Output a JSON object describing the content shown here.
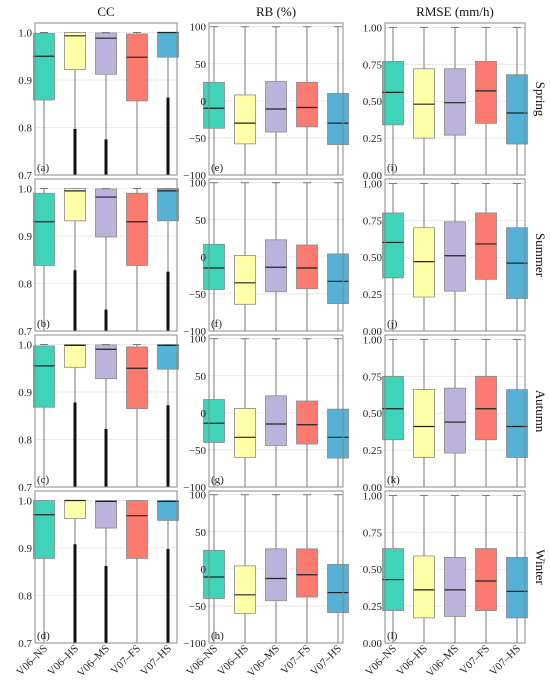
{
  "chart_data": {
    "type": "boxplot",
    "layout": "4x3",
    "column_titles": [
      "CC",
      "RB (%)",
      "RMSE (mm/h)"
    ],
    "row_labels": [
      "Spring",
      "Summer",
      "Autumn",
      "Winter"
    ],
    "categories": [
      "V06–NS",
      "V06–HS",
      "V06–MS",
      "V07–FS",
      "V07–HS"
    ],
    "colors": [
      "#40d3b9",
      "#ffffa8",
      "#bcb3dc",
      "#fb7b70",
      "#55b1d6"
    ],
    "panel_labels": [
      [
        "(a)",
        "(e)",
        "(i)"
      ],
      [
        "(b)",
        "(f)",
        "(j)"
      ],
      [
        "(c)",
        "(g)",
        "(k)"
      ],
      [
        "(d)",
        "(h)",
        "(l)"
      ]
    ],
    "axes": [
      {
        "ylim": [
          0.7,
          1.02
        ],
        "ticks": [
          0.7,
          0.8,
          0.9,
          1.0
        ],
        "tick_labels": [
          "0.7",
          "0.8",
          "0.9",
          "1.0"
        ]
      },
      {
        "ylim": [
          -100,
          105
        ],
        "ticks": [
          -100,
          -50,
          0,
          50,
          100
        ],
        "tick_labels": [
          "−100",
          "−50",
          "0",
          "50",
          "100"
        ]
      },
      {
        "ylim": [
          0,
          1.03
        ],
        "ticks": [
          0,
          0.25,
          0.5,
          0.75,
          1.0
        ],
        "tick_labels": [
          "0.00",
          "0.25",
          "0.50",
          "0.75",
          "1.00"
        ]
      }
    ],
    "panels": [
      [
        [
          {
            "whislo": 0.7,
            "q1": 0.858,
            "med": 0.95,
            "q3": 0.998,
            "whishi": 1.0
          },
          {
            "whislo": 0.7,
            "q1": 0.922,
            "med": 0.993,
            "q3": 1.0,
            "whishi": 1.0,
            "dense_tail": [
              0.7,
              0.797
            ]
          },
          {
            "whislo": 0.7,
            "q1": 0.912,
            "med": 0.988,
            "q3": 0.999,
            "whishi": 1.0,
            "dense_tail": [
              0.7,
              0.775
            ]
          },
          {
            "whislo": 0.7,
            "q1": 0.856,
            "med": 0.948,
            "q3": 0.997,
            "whishi": 1.0
          },
          {
            "whislo": 0.7,
            "q1": 0.948,
            "med": 1.0,
            "q3": 1.0,
            "whishi": 1.0,
            "dense_tail": [
              0.7,
              0.863
            ]
          }
        ],
        [
          {
            "whislo": -100,
            "q1": -37,
            "med": -10,
            "q3": 25,
            "whishi": 100
          },
          {
            "whislo": -100,
            "q1": -58,
            "med": -30,
            "q3": 8,
            "whishi": 100
          },
          {
            "whislo": -100,
            "q1": -42,
            "med": -11,
            "q3": 26,
            "whishi": 100
          },
          {
            "whislo": -100,
            "q1": -35,
            "med": -9,
            "q3": 25,
            "whishi": 100
          },
          {
            "whislo": -100,
            "q1": -59,
            "med": -30,
            "q3": 10,
            "whishi": 100
          }
        ],
        [
          {
            "whislo": 0,
            "q1": 0.34,
            "med": 0.56,
            "q3": 0.77,
            "whishi": 1.0
          },
          {
            "whislo": 0,
            "q1": 0.25,
            "med": 0.48,
            "q3": 0.72,
            "whishi": 1.0
          },
          {
            "whislo": 0,
            "q1": 0.27,
            "med": 0.49,
            "q3": 0.72,
            "whishi": 1.0
          },
          {
            "whislo": 0,
            "q1": 0.35,
            "med": 0.57,
            "q3": 0.77,
            "whishi": 1.0
          },
          {
            "whislo": 0,
            "q1": 0.21,
            "med": 0.42,
            "q3": 0.68,
            "whishi": 1.0
          }
        ]
      ],
      [
        [
          {
            "whislo": 0.7,
            "q1": 0.838,
            "med": 0.93,
            "q3": 0.99,
            "whishi": 1.0
          },
          {
            "whislo": 0.7,
            "q1": 0.932,
            "med": 0.995,
            "q3": 1.0,
            "whishi": 1.0,
            "dense_tail": [
              0.7,
              0.828
            ]
          },
          {
            "whislo": 0.7,
            "q1": 0.898,
            "med": 0.982,
            "q3": 0.999,
            "whishi": 1.0,
            "dense_tail": [
              0.7,
              0.745
            ]
          },
          {
            "whislo": 0.7,
            "q1": 0.838,
            "med": 0.93,
            "q3": 0.99,
            "whishi": 1.0
          },
          {
            "whislo": 0.7,
            "q1": 0.932,
            "med": 0.995,
            "q3": 1.0,
            "whishi": 1.0,
            "dense_tail": [
              0.7,
              0.825
            ]
          }
        ],
        [
          {
            "whislo": -100,
            "q1": -44,
            "med": -15,
            "q3": 17,
            "whishi": 100
          },
          {
            "whislo": -100,
            "q1": -64,
            "med": -35,
            "q3": 2,
            "whishi": 100
          },
          {
            "whislo": -100,
            "q1": -47,
            "med": -14,
            "q3": 23,
            "whishi": 100
          },
          {
            "whislo": -100,
            "q1": -43,
            "med": -15,
            "q3": 16,
            "whishi": 100
          },
          {
            "whislo": -100,
            "q1": -63,
            "med": -33,
            "q3": 4,
            "whishi": 100
          }
        ],
        [
          {
            "whislo": 0,
            "q1": 0.36,
            "med": 0.6,
            "q3": 0.8,
            "whishi": 1.0
          },
          {
            "whislo": 0,
            "q1": 0.23,
            "med": 0.47,
            "q3": 0.7,
            "whishi": 1.0
          },
          {
            "whislo": 0,
            "q1": 0.27,
            "med": 0.51,
            "q3": 0.74,
            "whishi": 1.0
          },
          {
            "whislo": 0,
            "q1": 0.35,
            "med": 0.59,
            "q3": 0.8,
            "whishi": 1.0
          },
          {
            "whislo": 0,
            "q1": 0.22,
            "med": 0.46,
            "q3": 0.7,
            "whishi": 1.0
          }
        ]
      ],
      [
        [
          {
            "whislo": 0.7,
            "q1": 0.868,
            "med": 0.955,
            "q3": 0.997,
            "whishi": 1.0
          },
          {
            "whislo": 0.7,
            "q1": 0.952,
            "med": 0.998,
            "q3": 1.0,
            "whishi": 1.0,
            "dense_tail": [
              0.7,
              0.878
            ]
          },
          {
            "whislo": 0.7,
            "q1": 0.928,
            "med": 0.99,
            "q3": 0.999,
            "whishi": 1.0,
            "dense_tail": [
              0.7,
              0.822
            ]
          },
          {
            "whislo": 0.7,
            "q1": 0.865,
            "med": 0.95,
            "q3": 0.995,
            "whishi": 1.0
          },
          {
            "whislo": 0.7,
            "q1": 0.948,
            "med": 0.998,
            "q3": 1.0,
            "whishi": 1.0,
            "dense_tail": [
              0.7,
              0.872
            ]
          }
        ],
        [
          {
            "whislo": -100,
            "q1": -40,
            "med": -14,
            "q3": 18,
            "whishi": 100
          },
          {
            "whislo": -100,
            "q1": -60,
            "med": -33,
            "q3": 6,
            "whishi": 100
          },
          {
            "whislo": -100,
            "q1": -44,
            "med": -15,
            "q3": 23,
            "whishi": 100
          },
          {
            "whislo": -100,
            "q1": -42,
            "med": -16,
            "q3": 16,
            "whishi": 100
          },
          {
            "whislo": -100,
            "q1": -61,
            "med": -33,
            "q3": 5,
            "whishi": 100
          }
        ],
        [
          {
            "whislo": 0,
            "q1": 0.32,
            "med": 0.53,
            "q3": 0.75,
            "whishi": 1.0
          },
          {
            "whislo": 0,
            "q1": 0.2,
            "med": 0.41,
            "q3": 0.66,
            "whishi": 1.0
          },
          {
            "whislo": 0,
            "q1": 0.23,
            "med": 0.44,
            "q3": 0.67,
            "whishi": 1.0
          },
          {
            "whislo": 0,
            "q1": 0.32,
            "med": 0.53,
            "q3": 0.75,
            "whishi": 1.0
          },
          {
            "whislo": 0,
            "q1": 0.2,
            "med": 0.41,
            "q3": 0.66,
            "whishi": 1.0
          }
        ]
      ],
      [
        [
          {
            "whislo": 0.7,
            "q1": 0.878,
            "med": 0.97,
            "q3": 1.0,
            "whishi": 1.0
          },
          {
            "whislo": 0.7,
            "q1": 0.962,
            "med": 1.0,
            "q3": 1.0,
            "whishi": 1.0,
            "dense_tail": [
              0.7,
              0.908
            ]
          },
          {
            "whislo": 0.7,
            "q1": 0.942,
            "med": 0.998,
            "q3": 1.0,
            "whishi": 1.0,
            "dense_tail": [
              0.7,
              0.862
            ]
          },
          {
            "whislo": 0.7,
            "q1": 0.878,
            "med": 0.968,
            "q3": 1.0,
            "whishi": 1.0
          },
          {
            "whislo": 0.7,
            "q1": 0.958,
            "med": 0.998,
            "q3": 1.0,
            "whishi": 1.0,
            "dense_tail": [
              0.7,
              0.898
            ]
          }
        ],
        [
          {
            "whislo": -100,
            "q1": -40,
            "med": -11,
            "q3": 25,
            "whishi": 100
          },
          {
            "whislo": -100,
            "q1": -60,
            "med": -35,
            "q3": 4,
            "whishi": 100
          },
          {
            "whislo": -100,
            "q1": -43,
            "med": -13,
            "q3": 27,
            "whishi": 100
          },
          {
            "whislo": -100,
            "q1": -38,
            "med": -8,
            "q3": 27,
            "whishi": 100
          },
          {
            "whislo": -100,
            "q1": -59,
            "med": -32,
            "q3": 6,
            "whishi": 100
          }
        ],
        [
          {
            "whislo": 0,
            "q1": 0.22,
            "med": 0.43,
            "q3": 0.64,
            "whishi": 1.0
          },
          {
            "whislo": 0,
            "q1": 0.17,
            "med": 0.36,
            "q3": 0.59,
            "whishi": 1.0
          },
          {
            "whislo": 0,
            "q1": 0.18,
            "med": 0.36,
            "q3": 0.58,
            "whishi": 1.0
          },
          {
            "whislo": 0,
            "q1": 0.22,
            "med": 0.42,
            "q3": 0.64,
            "whishi": 1.0
          },
          {
            "whislo": 0,
            "q1": 0.17,
            "med": 0.35,
            "q3": 0.58,
            "whishi": 1.0
          }
        ]
      ]
    ]
  }
}
